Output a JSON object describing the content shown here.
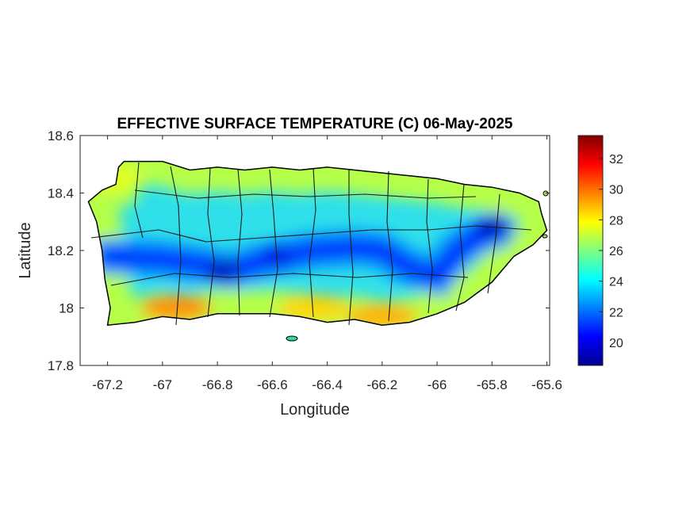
{
  "chart_data": {
    "type": "heatmap",
    "title": "EFFECTIVE SURFACE TEMPERATURE (C) 06-May-2025",
    "xlabel": "Longitude",
    "ylabel": "Latitude",
    "xlim": [
      -67.3,
      -65.59
    ],
    "ylim": [
      17.8,
      18.6
    ],
    "x_ticks": [
      -67.2,
      -67,
      -66.8,
      -66.6,
      -66.4,
      -66.2,
      -66,
      -65.8,
      -65.6
    ],
    "x_tick_labels": [
      "-67.2",
      "-67",
      "-66.8",
      "-66.6",
      "-66.4",
      "-66.2",
      "-66",
      "-65.8",
      "-65.6"
    ],
    "y_ticks": [
      17.8,
      18,
      18.2,
      18.4,
      18.6
    ],
    "y_tick_labels": [
      "17.8",
      "18",
      "18.2",
      "18.4",
      "18.6"
    ],
    "colorbar": {
      "colormap": "jet",
      "range": [
        18.5,
        33.5
      ],
      "ticks": [
        20,
        22,
        24,
        26,
        28,
        30,
        32
      ],
      "tick_labels": [
        "20",
        "22",
        "24",
        "26",
        "28",
        "30",
        "32"
      ]
    },
    "island_outline": [
      [
        -67.27,
        18.37
      ],
      [
        -67.22,
        18.41
      ],
      [
        -67.17,
        18.43
      ],
      [
        -67.16,
        18.49
      ],
      [
        -67.14,
        18.51
      ],
      [
        -67.0,
        18.51
      ],
      [
        -66.9,
        18.48
      ],
      [
        -66.8,
        18.49
      ],
      [
        -66.7,
        18.48
      ],
      [
        -66.6,
        18.49
      ],
      [
        -66.5,
        18.48
      ],
      [
        -66.4,
        18.49
      ],
      [
        -66.3,
        18.48
      ],
      [
        -66.2,
        18.47
      ],
      [
        -66.1,
        18.46
      ],
      [
        -66.0,
        18.45
      ],
      [
        -65.9,
        18.43
      ],
      [
        -65.8,
        18.42
      ],
      [
        -65.7,
        18.4
      ],
      [
        -65.63,
        18.37
      ],
      [
        -65.62,
        18.33
      ],
      [
        -65.6,
        18.27
      ],
      [
        -65.65,
        18.22
      ],
      [
        -65.72,
        18.18
      ],
      [
        -65.8,
        18.09
      ],
      [
        -65.9,
        18.02
      ],
      [
        -66.0,
        17.98
      ],
      [
        -66.1,
        17.95
      ],
      [
        -66.2,
        17.94
      ],
      [
        -66.3,
        17.96
      ],
      [
        -66.4,
        17.95
      ],
      [
        -66.5,
        17.97
      ],
      [
        -66.6,
        17.98
      ],
      [
        -66.7,
        17.98
      ],
      [
        -66.8,
        17.98
      ],
      [
        -66.9,
        17.96
      ],
      [
        -67.0,
        17.97
      ],
      [
        -67.1,
        17.95
      ],
      [
        -67.2,
        17.94
      ],
      [
        -67.19,
        18.0
      ],
      [
        -67.21,
        18.1
      ],
      [
        -67.22,
        18.2
      ],
      [
        -67.24,
        18.3
      ],
      [
        -67.27,
        18.37
      ]
    ],
    "temperature_features": [
      {
        "kind": "cold_ridge",
        "path": [
          [
            -67.2,
            18.18
          ],
          [
            -67.0,
            18.17
          ],
          [
            -66.85,
            18.15
          ],
          [
            -66.75,
            18.13
          ],
          [
            -66.65,
            18.16
          ],
          [
            -66.55,
            18.18
          ],
          [
            -66.45,
            18.2
          ],
          [
            -66.3,
            18.21
          ],
          [
            -66.2,
            18.2
          ],
          [
            -66.1,
            18.14
          ],
          [
            -66.0,
            18.11
          ],
          [
            -65.93,
            18.2
          ],
          [
            -65.85,
            18.25
          ],
          [
            -65.78,
            18.27
          ]
        ],
        "value": 20.5
      },
      {
        "kind": "cold_spot",
        "lon": -65.8,
        "lat": 18.28,
        "value": 19.5
      },
      {
        "kind": "cold_spot",
        "lon": -66.78,
        "lat": 18.13,
        "value": 19.5
      },
      {
        "kind": "cold_spot",
        "lon": -66.58,
        "lat": 18.18,
        "value": 20.0
      },
      {
        "kind": "warm_coast",
        "lon": -66.95,
        "lat": 18.0,
        "value": 29.5
      },
      {
        "kind": "warm_coast",
        "lon": -66.45,
        "lat": 18.0,
        "value": 28.5
      },
      {
        "kind": "warm_coast",
        "lon": -66.2,
        "lat": 17.97,
        "value": 29.0
      },
      {
        "kind": "warm_coast",
        "lon": -67.2,
        "lat": 18.45,
        "value": 27.5
      }
    ]
  }
}
